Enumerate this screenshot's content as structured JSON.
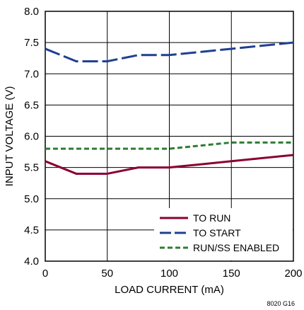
{
  "chart_data": {
    "type": "line",
    "title": "",
    "xlabel": "LOAD CURRENT (mA)",
    "ylabel": "INPUT VOLTAGE (V)",
    "xlim": [
      0,
      200
    ],
    "ylim": [
      4.0,
      8.0
    ],
    "x_ticks": [
      0,
      50,
      100,
      150,
      200
    ],
    "y_ticks": [
      4.0,
      4.5,
      5.0,
      5.5,
      6.0,
      6.5,
      7.0,
      7.5,
      8.0
    ],
    "x_tick_labels": [
      "0",
      "50",
      "100",
      "150",
      "200"
    ],
    "y_tick_labels": [
      "4.0",
      "4.5",
      "5.0",
      "5.5",
      "6.0",
      "6.5",
      "7.0",
      "7.5",
      "8.0"
    ],
    "grid": true,
    "legend_position": "bottom-right",
    "series": [
      {
        "name": "TO RUN",
        "color": "#8b0033",
        "style": "solid",
        "x": [
          0,
          25,
          50,
          75,
          100,
          125,
          150,
          175,
          200
        ],
        "y": [
          5.6,
          5.4,
          5.4,
          5.5,
          5.5,
          5.55,
          5.6,
          5.65,
          5.7
        ]
      },
      {
        "name": "TO START",
        "color": "#1f3f91",
        "style": "longdash",
        "x": [
          0,
          25,
          50,
          75,
          100,
          125,
          150,
          175,
          200
        ],
        "y": [
          7.4,
          7.2,
          7.2,
          7.3,
          7.3,
          7.35,
          7.4,
          7.45,
          7.5
        ]
      },
      {
        "name": "RUN/SS ENABLED",
        "color": "#2e7d32",
        "style": "shortdash",
        "x": [
          0,
          25,
          50,
          75,
          100,
          125,
          150,
          175,
          200
        ],
        "y": [
          5.8,
          5.8,
          5.8,
          5.8,
          5.8,
          5.85,
          5.9,
          5.9,
          5.9
        ]
      }
    ]
  },
  "figure_id": "8020 G16"
}
